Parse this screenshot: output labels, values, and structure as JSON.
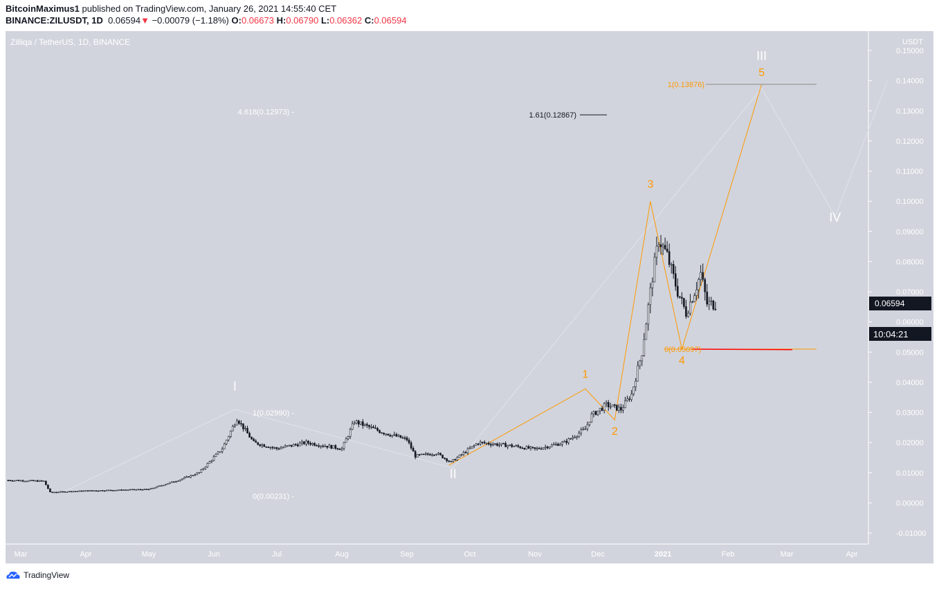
{
  "header": {
    "author": "BitcoinMaximus1",
    "published": "published on TradingView.com, January 26, 2021 14:55:40 CET",
    "symbol": "BINANCE:ZILUSDT, 1D",
    "last": "0.06594",
    "change": "−0.00079 (−1.18%)",
    "o_label": "O:",
    "o": "0.06673",
    "h_label": "H:",
    "h": "0.06790",
    "l_label": "L:",
    "l": "0.06362",
    "c_label": "C:",
    "c": "0.06594",
    "down_icon": "triangle-down-icon"
  },
  "footer": {
    "brand": "TradingView",
    "icon": "tradingview-cloud-icon"
  },
  "colors": {
    "background": "#d1d4dc",
    "orange": "#ff9800",
    "wave_gray": "#e0e3eb",
    "red": "#ff0000",
    "price_label_bg": "#131722"
  },
  "chart_data": {
    "type": "candlestick",
    "title": "Zilliqa / TetherUS, 1D, BINANCE",
    "currency": "USDT",
    "ylim": [
      -0.013,
      0.156
    ],
    "yticks": [
      "0.15000",
      "0.14000",
      "0.13000",
      "0.12000",
      "0.11000",
      "0.10000",
      "0.09000",
      "0.08000",
      "0.07000",
      "0.06000",
      "0.05000",
      "0.04000",
      "0.03000",
      "0.02000",
      "0.01000",
      "0.00000",
      "-0.01000"
    ],
    "xticks": [
      {
        "label": "Mar",
        "date": "2020-03-01"
      },
      {
        "label": "Apr",
        "date": "2020-04-01"
      },
      {
        "label": "May",
        "date": "2020-05-01"
      },
      {
        "label": "Jun",
        "date": "2020-06-01"
      },
      {
        "label": "Jul",
        "date": "2020-07-01"
      },
      {
        "label": "Aug",
        "date": "2020-08-01"
      },
      {
        "label": "Sep",
        "date": "2020-09-01"
      },
      {
        "label": "Oct",
        "date": "2020-10-01"
      },
      {
        "label": "Nov",
        "date": "2020-11-01"
      },
      {
        "label": "Dec",
        "date": "2020-12-01"
      },
      {
        "label": "2021",
        "date": "2021-01-01"
      },
      {
        "label": "Feb",
        "date": "2021-02-01"
      },
      {
        "label": "Mar",
        "date": "2021-03-01"
      },
      {
        "label": "Apr",
        "date": "2021-04-01"
      }
    ],
    "last_price_label": "0.06594",
    "countdown": "10:04:21",
    "approx_closes": [
      [
        "2020-02-24",
        0.0075
      ],
      [
        "2020-03-12",
        0.0072
      ],
      [
        "2020-03-15",
        0.0035
      ],
      [
        "2020-04-01",
        0.004
      ],
      [
        "2020-05-01",
        0.0045
      ],
      [
        "2020-05-15",
        0.0075
      ],
      [
        "2020-05-25",
        0.01
      ],
      [
        "2020-06-05",
        0.018
      ],
      [
        "2020-06-12",
        0.028
      ],
      [
        "2020-06-20",
        0.02
      ],
      [
        "2020-07-01",
        0.018
      ],
      [
        "2020-07-15",
        0.02
      ],
      [
        "2020-08-01",
        0.018
      ],
      [
        "2020-08-07",
        0.027
      ],
      [
        "2020-08-20",
        0.0235
      ],
      [
        "2020-09-01",
        0.021
      ],
      [
        "2020-09-05",
        0.0155
      ],
      [
        "2020-09-15",
        0.0165
      ],
      [
        "2020-09-22",
        0.0135
      ],
      [
        "2020-10-05",
        0.02
      ],
      [
        "2020-10-20",
        0.019
      ],
      [
        "2020-11-01",
        0.0178
      ],
      [
        "2020-11-15",
        0.02
      ],
      [
        "2020-11-25",
        0.0245
      ],
      [
        "2020-11-28",
        0.029
      ],
      [
        "2020-12-05",
        0.0325
      ],
      [
        "2020-12-12",
        0.031
      ],
      [
        "2020-12-17",
        0.036
      ],
      [
        "2020-12-22",
        0.05
      ],
      [
        "2020-12-27",
        0.075
      ],
      [
        "2020-12-30",
        0.0875
      ],
      [
        "2021-01-03",
        0.082
      ],
      [
        "2021-01-08",
        0.07
      ],
      [
        "2021-01-12",
        0.063
      ],
      [
        "2021-01-16",
        0.07
      ],
      [
        "2021-01-19",
        0.076
      ],
      [
        "2021-01-22",
        0.066
      ],
      [
        "2021-01-26",
        0.0659
      ]
    ],
    "major_wave": {
      "points": [
        [
          "2020-03-21",
          0.0035
        ],
        [
          "2020-06-11",
          0.031
        ],
        [
          "2020-09-23",
          0.0115
        ],
        [
          "2021-02-17",
          0.1375
        ],
        [
          "2021-03-24",
          0.095
        ],
        [
          "2021-04-18",
          0.14
        ]
      ],
      "labels": [
        {
          "text": "I",
          "date": "2020-06-11",
          "price": 0.0345
        },
        {
          "text": "II",
          "date": "2020-09-23",
          "price": 0.0055
        },
        {
          "text": "III",
          "date": "2021-02-17",
          "price": 0.144
        },
        {
          "text": "IV",
          "date": "2021-03-24",
          "price": 0.0905
        }
      ]
    },
    "minor_wave": {
      "points": [
        [
          "2020-09-21",
          0.0125
        ],
        [
          "2020-11-25",
          0.0378
        ],
        [
          "2020-12-09",
          0.0275
        ],
        [
          "2020-12-26",
          0.1
        ],
        [
          "2021-01-10",
          0.051
        ],
        [
          "2021-02-17",
          0.1388
        ]
      ],
      "labels": [
        {
          "text": "1",
          "date": "2020-11-25",
          "price": 0.0415
        },
        {
          "text": "2",
          "date": "2020-12-09",
          "price": 0.0225
        },
        {
          "text": "3",
          "date": "2020-12-26",
          "price": 0.1045
        },
        {
          "text": "4",
          "date": "2021-01-10",
          "price": 0.046
        },
        {
          "text": "5",
          "date": "2021-02-17",
          "price": 0.1415
        }
      ]
    },
    "fib_labels": [
      {
        "text": "4.618(0.12973) -",
        "price": 0.12973,
        "color": "#ffffff"
      },
      {
        "text": "1(0.02990) -",
        "price": 0.0299,
        "color": "#ffffff"
      },
      {
        "text": "0(0.00231) -",
        "price": 0.00231,
        "color": "#ffffff"
      },
      {
        "text": "1.61(0.12867)",
        "price": 0.12867,
        "color": "#131722"
      },
      {
        "text": "1(0.13876)",
        "price": 0.13876,
        "color": "#ff9800"
      },
      {
        "text": "0(0.05097)",
        "price": 0.05097,
        "color": "#ff9800"
      }
    ]
  }
}
